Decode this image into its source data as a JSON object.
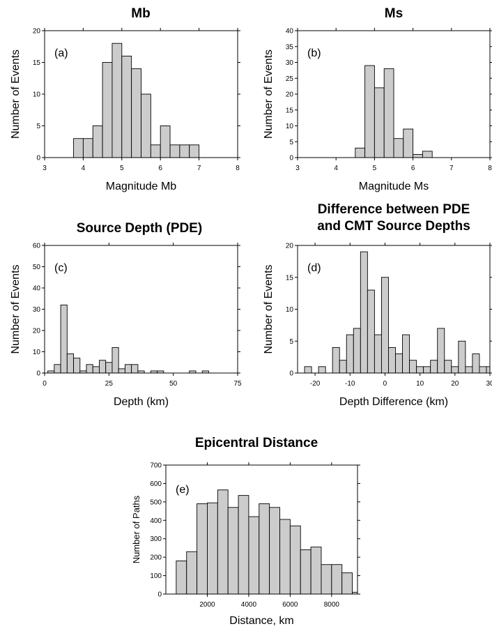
{
  "chart_data": [
    {
      "id": "a",
      "type": "bar",
      "title": "Mb",
      "panel_label": "(a)",
      "xlabel": "Magnitude Mb",
      "ylabel": "Number of Events",
      "xlim": [
        3,
        8
      ],
      "ylim": [
        0,
        20
      ],
      "xticks": [
        "3",
        "4",
        "5",
        "6",
        "7",
        "8"
      ],
      "yticks": [
        "0",
        "5",
        "10",
        "15",
        "20"
      ],
      "bin_width": 0.25,
      "bins": [
        {
          "x": 3.875,
          "value": 3
        },
        {
          "x": 4.125,
          "value": 3
        },
        {
          "x": 4.375,
          "value": 5
        },
        {
          "x": 4.625,
          "value": 15
        },
        {
          "x": 4.875,
          "value": 18
        },
        {
          "x": 5.125,
          "value": 16
        },
        {
          "x": 5.375,
          "value": 14
        },
        {
          "x": 5.625,
          "value": 10
        },
        {
          "x": 5.875,
          "value": 2
        },
        {
          "x": 6.125,
          "value": 5
        },
        {
          "x": 6.375,
          "value": 2
        },
        {
          "x": 6.625,
          "value": 2
        },
        {
          "x": 6.875,
          "value": 2
        }
      ]
    },
    {
      "id": "b",
      "type": "bar",
      "title": "Ms",
      "panel_label": "(b)",
      "xlabel": "Magnitude Ms",
      "ylabel": "Number of Events",
      "xlim": [
        3,
        8
      ],
      "ylim": [
        0,
        40
      ],
      "xticks": [
        "3",
        "4",
        "5",
        "6",
        "7",
        "8"
      ],
      "yticks": [
        "0",
        "5",
        "10",
        "15",
        "20",
        "25",
        "30",
        "35",
        "40"
      ],
      "bin_width": 0.25,
      "bins": [
        {
          "x": 4.625,
          "value": 3
        },
        {
          "x": 4.875,
          "value": 29
        },
        {
          "x": 5.125,
          "value": 22
        },
        {
          "x": 5.375,
          "value": 28
        },
        {
          "x": 5.625,
          "value": 6
        },
        {
          "x": 5.875,
          "value": 9
        },
        {
          "x": 6.125,
          "value": 1
        },
        {
          "x": 6.375,
          "value": 2
        }
      ]
    },
    {
      "id": "c",
      "type": "bar",
      "title": "Source Depth  (PDE)",
      "panel_label": "(c)",
      "xlabel": "Depth (km)",
      "ylabel": "Number of Events",
      "xlim": [
        0,
        75
      ],
      "ylim": [
        0,
        60
      ],
      "xticks": [
        "0",
        "25",
        "50",
        "75"
      ],
      "yticks": [
        "0",
        "10",
        "20",
        "30",
        "40",
        "50",
        "60"
      ],
      "bin_width": 2.5,
      "bins": [
        {
          "x": 2.5,
          "value": 1
        },
        {
          "x": 5,
          "value": 4
        },
        {
          "x": 7.5,
          "value": 32
        },
        {
          "x": 10,
          "value": 9
        },
        {
          "x": 12.5,
          "value": 7
        },
        {
          "x": 15,
          "value": 1
        },
        {
          "x": 17.5,
          "value": 4
        },
        {
          "x": 20,
          "value": 3
        },
        {
          "x": 22.5,
          "value": 6
        },
        {
          "x": 25,
          "value": 5
        },
        {
          "x": 27.5,
          "value": 12
        },
        {
          "x": 30,
          "value": 2
        },
        {
          "x": 32.5,
          "value": 4
        },
        {
          "x": 35,
          "value": 4
        },
        {
          "x": 37.5,
          "value": 1
        },
        {
          "x": 42.5,
          "value": 1
        },
        {
          "x": 45,
          "value": 1
        },
        {
          "x": 57.5,
          "value": 1
        },
        {
          "x": 62.5,
          "value": 1
        }
      ]
    },
    {
      "id": "d",
      "type": "bar",
      "title": "Difference between PDE\nand CMT Source Depths",
      "panel_label": "(d)",
      "xlabel": "Depth Difference (km)",
      "ylabel": "Number of Events",
      "xlim": [
        -25,
        30
      ],
      "ylim": [
        0,
        20
      ],
      "xticks": [
        "-20",
        "-10",
        "0",
        "10",
        "20",
        "30"
      ],
      "yticks": [
        "0",
        "5",
        "10",
        "15",
        "20"
      ],
      "bin_width": 2,
      "bins": [
        {
          "x": -22,
          "value": 1
        },
        {
          "x": -18,
          "value": 1
        },
        {
          "x": -14,
          "value": 4
        },
        {
          "x": -12,
          "value": 2
        },
        {
          "x": -10,
          "value": 6
        },
        {
          "x": -8,
          "value": 7
        },
        {
          "x": -6,
          "value": 19
        },
        {
          "x": -4,
          "value": 13
        },
        {
          "x": -2,
          "value": 6
        },
        {
          "x": 0,
          "value": 15
        },
        {
          "x": 2,
          "value": 4
        },
        {
          "x": 4,
          "value": 3
        },
        {
          "x": 6,
          "value": 6
        },
        {
          "x": 8,
          "value": 2
        },
        {
          "x": 10,
          "value": 1
        },
        {
          "x": 12,
          "value": 1
        },
        {
          "x": 14,
          "value": 2
        },
        {
          "x": 16,
          "value": 7
        },
        {
          "x": 18,
          "value": 2
        },
        {
          "x": 20,
          "value": 1
        },
        {
          "x": 22,
          "value": 5
        },
        {
          "x": 24,
          "value": 1
        },
        {
          "x": 26,
          "value": 3
        },
        {
          "x": 28,
          "value": 1
        },
        {
          "x": 30,
          "value": 1
        }
      ]
    },
    {
      "id": "e",
      "type": "bar",
      "title": "Epicentral Distance",
      "panel_label": "(e)",
      "xlabel": "Distance, km",
      "ylabel": "Number of Paths",
      "xlim": [
        0,
        9250
      ],
      "ylim": [
        0,
        700
      ],
      "xticks": [
        "2000",
        "4000",
        "6000",
        "8000"
      ],
      "xtick_values": [
        2000,
        4000,
        6000,
        8000
      ],
      "yticks": [
        "0",
        "100",
        "200",
        "300",
        "400",
        "500",
        "600",
        "700"
      ],
      "bin_width": 500,
      "bins": [
        {
          "x": 750,
          "value": 180
        },
        {
          "x": 1250,
          "value": 230
        },
        {
          "x": 1750,
          "value": 490
        },
        {
          "x": 2250,
          "value": 495
        },
        {
          "x": 2750,
          "value": 565
        },
        {
          "x": 3250,
          "value": 470
        },
        {
          "x": 3750,
          "value": 535
        },
        {
          "x": 4250,
          "value": 420
        },
        {
          "x": 4750,
          "value": 490
        },
        {
          "x": 5250,
          "value": 470
        },
        {
          "x": 5750,
          "value": 405
        },
        {
          "x": 6250,
          "value": 370
        },
        {
          "x": 6750,
          "value": 240
        },
        {
          "x": 7250,
          "value": 255
        },
        {
          "x": 7750,
          "value": 160
        },
        {
          "x": 8250,
          "value": 160
        },
        {
          "x": 8750,
          "value": 115
        },
        {
          "x": 9250,
          "value": 10
        }
      ]
    }
  ]
}
